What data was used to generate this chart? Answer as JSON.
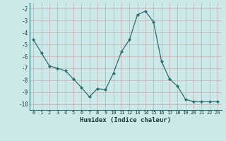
{
  "x": [
    0,
    1,
    2,
    3,
    4,
    5,
    6,
    7,
    8,
    9,
    10,
    11,
    12,
    13,
    14,
    15,
    16,
    17,
    18,
    19,
    20,
    21,
    22,
    23
  ],
  "y": [
    -4.6,
    -5.7,
    -6.8,
    -7.0,
    -7.2,
    -7.9,
    -8.6,
    -9.4,
    -8.7,
    -8.8,
    -7.4,
    -5.6,
    -4.6,
    -2.5,
    -2.2,
    -3.1,
    -6.4,
    -7.9,
    -8.5,
    -9.6,
    -9.8,
    -9.8,
    -9.8,
    -9.8
  ],
  "line_color": "#2d6e6e",
  "marker": "D",
  "marker_size": 2,
  "bg_color": "#cce8e8",
  "grid_color": "#c8a8a8",
  "xlabel": "Humidex (Indice chaleur)",
  "ylim": [
    -10.5,
    -1.5
  ],
  "xlim": [
    -0.5,
    23.5
  ],
  "yticks": [
    -10,
    -9,
    -8,
    -7,
    -6,
    -5,
    -4,
    -3,
    -2
  ],
  "xticks": [
    0,
    1,
    2,
    3,
    4,
    5,
    6,
    7,
    8,
    9,
    10,
    11,
    12,
    13,
    14,
    15,
    16,
    17,
    18,
    19,
    20,
    21,
    22,
    23
  ]
}
